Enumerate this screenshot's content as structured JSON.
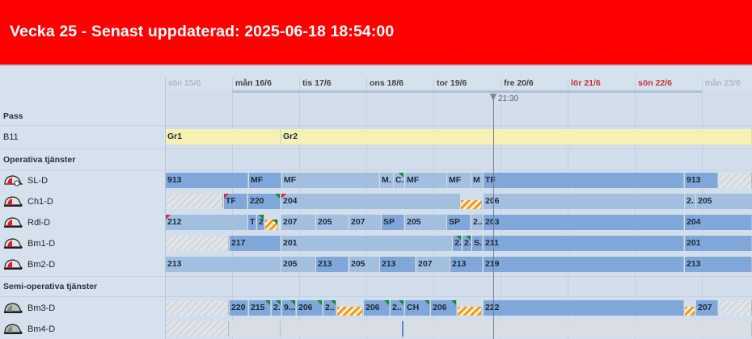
{
  "header": {
    "title": "Vecka 25 - Senast uppdaterad: 2025-06-18 18:54:00"
  },
  "days": [
    "sön 15/6",
    "mån 16/6",
    "tis 17/6",
    "ons 18/6",
    "tor 19/6",
    "fre 20/6",
    "lör 21/6",
    "sön 22/6",
    "mån 23/6"
  ],
  "now_label": "21:30",
  "sections": {
    "pass": "Pass",
    "operativa": "Operativa tjänster",
    "semi": "Semi-operativa tjänster"
  },
  "rows": {
    "b11": {
      "label": "B11",
      "bars": [
        "Gr1",
        "Gr2"
      ]
    },
    "sld": {
      "label": "SL-D",
      "icon": "red-helmet-icon",
      "bars": [
        "913",
        "MF",
        "MF",
        "M.",
        "C.",
        "MF",
        "MF",
        "M",
        "TF",
        "913"
      ]
    },
    "ch1d": {
      "label": "Ch1-D",
      "icon": "red-helmet-icon",
      "bars": [
        "TF",
        "220",
        "204",
        "206",
        "2..",
        "205"
      ]
    },
    "rdld": {
      "label": "Rdl-D",
      "icon": "red-helmet-icon",
      "bars": [
        "212",
        "T",
        "2",
        "207",
        "205",
        "207",
        "SP",
        "205",
        "SP",
        "2..",
        "203",
        "204"
      ]
    },
    "bm1d": {
      "label": "Bm1-D",
      "icon": "red-helmet-icon",
      "bars": [
        "217",
        "201",
        "2.",
        "2.",
        "S..",
        "211",
        "201"
      ]
    },
    "bm2d": {
      "label": "Bm2-D",
      "icon": "red-helmet-icon",
      "bars": [
        "213",
        "205",
        "213",
        "205",
        "213",
        "207",
        "213",
        "219",
        "213"
      ]
    },
    "bm3d": {
      "label": "Bm3-D",
      "icon": "grey-helmet-icon",
      "bars": [
        "220",
        "215",
        "2..",
        "9...",
        "206",
        "2..",
        "206",
        "2..",
        "CH",
        "206",
        "222",
        "207"
      ]
    },
    "bm4d": {
      "label": "Bm4-D",
      "icon": "grey-helmet-icon",
      "bars": []
    }
  },
  "colors": {
    "header": "#ff0000",
    "bar_dark": "#7fa7d9",
    "bar_light": "#a2bfdf",
    "yellow": "#f6f1b3",
    "weekend": "#c8303a"
  }
}
